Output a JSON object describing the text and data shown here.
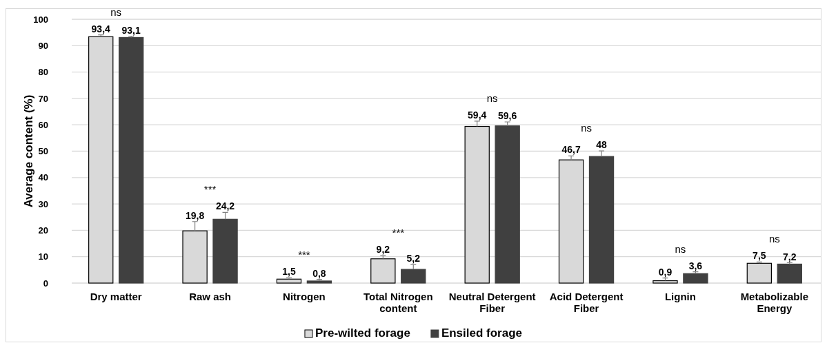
{
  "chart_data": {
    "type": "bar",
    "ylabel": "Average content (%)",
    "categories": [
      "Dry matter",
      "Raw ash",
      "Nitrogen",
      "Total Nitrogen content",
      "Neutral Detergent Fiber",
      "Acid Detergent Fiber",
      "Lignin",
      "Metabolizable Energy"
    ],
    "series": [
      {
        "name": "Pre-wilted forage",
        "color": "#d9d9d9",
        "values": [
          93.4,
          19.8,
          1.5,
          9.2,
          59.4,
          46.7,
          0.9,
          7.5
        ],
        "value_labels": [
          "93,4",
          "19,8",
          "1,5",
          "9,2",
          "59,4",
          "46,7",
          "0,9",
          "7,5"
        ],
        "errors": [
          [
            93.4,
            94.1
          ],
          [
            19.8,
            23.3
          ],
          [
            1.5,
            2.0
          ],
          [
            9.2,
            10.4
          ],
          [
            59.4,
            61.4
          ],
          [
            46.7,
            48.2
          ],
          [
            0.9,
            1.9
          ],
          [
            7.5,
            8.0
          ]
        ]
      },
      {
        "name": "Ensiled forage",
        "color": "#404040",
        "values": [
          93.1,
          24.2,
          0.8,
          5.2,
          59.6,
          48,
          3.6,
          7.2
        ],
        "value_labels": [
          "93,1",
          "24,2",
          "0,8",
          "5,2",
          "59,6",
          "48",
          "3,6",
          "7,2"
        ],
        "errors": [
          [
            93.1,
            93.6
          ],
          [
            24.2,
            26.8
          ],
          [
            0.8,
            1.4
          ],
          [
            5.2,
            7.0
          ],
          [
            59.6,
            61.1
          ],
          [
            48,
            50.1
          ],
          [
            3.6,
            4.3
          ],
          [
            7.2,
            7.7
          ]
        ]
      }
    ],
    "ylim": [
      0,
      100
    ],
    "yticks": [
      0,
      10,
      20,
      30,
      40,
      50,
      60,
      70,
      80,
      90,
      100
    ],
    "grid": "y",
    "legend": "bottom",
    "annotations": [
      "ns",
      "***",
      "***",
      "***",
      "ns",
      "ns",
      "ns",
      "ns"
    ]
  }
}
